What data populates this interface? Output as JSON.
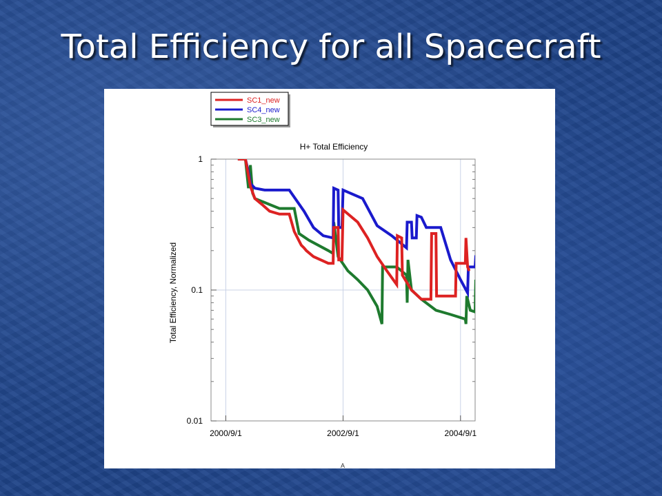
{
  "slide": {
    "title": "Total Efficiency for all Spacecraft"
  },
  "chart_data": {
    "type": "line",
    "title": "H+ Total Efficiency",
    "xlabel": "",
    "ylabel": "Total Efficiency, Normalized",
    "footer_mark": "A",
    "x_scale": "time",
    "xlim": [
      "2000-06-01",
      "2004-12-01"
    ],
    "y_scale": "log",
    "ylim": [
      0.01,
      1
    ],
    "y_ticks": [
      {
        "value": 1,
        "label": "1"
      },
      {
        "value": 0.1,
        "label": "0.1"
      },
      {
        "value": 0.01,
        "label": "0.01"
      }
    ],
    "x_ticks": [
      {
        "value": "2000-09-01",
        "label": "2000/9/1"
      },
      {
        "value": "2002-09-01",
        "label": "2002/9/1"
      },
      {
        "value": "2004-09-01",
        "label": "2004/9/1"
      }
    ],
    "grid": true,
    "legend_position": "top-left",
    "series": [
      {
        "name": "SC1_new",
        "color": "#dd2222",
        "points": [
          [
            "2000-11-15",
            1.0
          ],
          [
            "2001-01-01",
            1.0
          ],
          [
            "2001-01-20",
            0.75
          ],
          [
            "2001-02-01",
            0.62
          ],
          [
            "2001-03-01",
            0.5
          ],
          [
            "2001-04-15",
            0.45
          ],
          [
            "2001-06-01",
            0.4
          ],
          [
            "2001-08-01",
            0.38
          ],
          [
            "2001-10-01",
            0.38
          ],
          [
            "2001-11-01",
            0.28
          ],
          [
            "2001-12-15",
            0.22
          ],
          [
            "2002-01-01",
            0.21
          ],
          [
            "2002-01-15",
            0.2
          ],
          [
            "2002-03-01",
            0.18
          ],
          [
            "2002-06-01",
            0.16
          ],
          [
            "2002-07-01",
            0.16
          ],
          [
            "2002-07-05",
            0.3
          ],
          [
            "2002-08-01",
            0.3
          ],
          [
            "2002-08-05",
            0.17
          ],
          [
            "2002-08-25",
            0.17
          ],
          [
            "2002-09-01",
            0.41
          ],
          [
            "2002-12-01",
            0.33
          ],
          [
            "2003-02-01",
            0.25
          ],
          [
            "2003-04-01",
            0.18
          ],
          [
            "2003-06-01",
            0.14
          ],
          [
            "2003-08-01",
            0.11
          ],
          [
            "2003-08-05",
            0.26
          ],
          [
            "2003-09-01",
            0.25
          ],
          [
            "2003-09-05",
            0.13
          ],
          [
            "2003-11-01",
            0.1
          ],
          [
            "2004-01-01",
            0.085
          ],
          [
            "2004-03-01",
            0.085
          ],
          [
            "2004-03-05",
            0.27
          ],
          [
            "2004-04-01",
            0.27
          ],
          [
            "2004-04-05",
            0.09
          ],
          [
            "2004-08-01",
            0.09
          ],
          [
            "2004-08-05",
            0.16
          ],
          [
            "2004-10-01",
            0.16
          ],
          [
            "2004-10-05",
            0.25
          ],
          [
            "2004-10-15",
            0.15
          ],
          [
            "2004-10-25",
            0.14
          ]
        ]
      },
      {
        "name": "SC4_new",
        "color": "#1a1acc",
        "points": [
          [
            "2000-11-15",
            1.0
          ],
          [
            "2001-01-01",
            1.0
          ],
          [
            "2001-01-20",
            0.8
          ],
          [
            "2001-02-01",
            0.65
          ],
          [
            "2001-03-01",
            0.6
          ],
          [
            "2001-05-01",
            0.58
          ],
          [
            "2001-07-01",
            0.58
          ],
          [
            "2001-10-01",
            0.58
          ],
          [
            "2002-01-01",
            0.4
          ],
          [
            "2002-03-01",
            0.3
          ],
          [
            "2002-05-01",
            0.26
          ],
          [
            "2002-07-01",
            0.25
          ],
          [
            "2002-07-05",
            0.6
          ],
          [
            "2002-08-01",
            0.58
          ],
          [
            "2002-08-05",
            0.3
          ],
          [
            "2002-08-25",
            0.3
          ],
          [
            "2002-09-01",
            0.58
          ],
          [
            "2003-01-01",
            0.5
          ],
          [
            "2003-04-01",
            0.31
          ],
          [
            "2003-07-01",
            0.26
          ],
          [
            "2003-10-01",
            0.21
          ],
          [
            "2003-10-05",
            0.33
          ],
          [
            "2003-11-01",
            0.33
          ],
          [
            "2003-11-05",
            0.25
          ],
          [
            "2003-12-01",
            0.25
          ],
          [
            "2003-12-05",
            0.37
          ],
          [
            "2004-01-01",
            0.36
          ],
          [
            "2004-02-01",
            0.3
          ],
          [
            "2004-05-01",
            0.3
          ],
          [
            "2004-07-01",
            0.17
          ],
          [
            "2004-09-01",
            0.12
          ],
          [
            "2004-10-15",
            0.095
          ],
          [
            "2004-10-20",
            0.15
          ],
          [
            "2004-12-01",
            0.15
          ],
          [
            "2004-12-05",
            0.18
          ],
          [
            "2005-02-01",
            0.18
          ]
        ]
      },
      {
        "name": "SC3_new",
        "color": "#1e7a2e",
        "points": [
          [
            "2000-11-15",
            1.0
          ],
          [
            "2001-01-01",
            1.0
          ],
          [
            "2001-01-20",
            0.6
          ],
          [
            "2001-02-01",
            0.9
          ],
          [
            "2001-02-15",
            0.55
          ],
          [
            "2001-03-01",
            0.5
          ],
          [
            "2001-06-01",
            0.45
          ],
          [
            "2001-08-01",
            0.42
          ],
          [
            "2001-11-01",
            0.42
          ],
          [
            "2001-12-01",
            0.27
          ],
          [
            "2002-02-01",
            0.24
          ],
          [
            "2002-06-01",
            0.2
          ],
          [
            "2002-07-01",
            0.19
          ],
          [
            "2002-07-05",
            0.33
          ],
          [
            "2002-08-01",
            0.18
          ],
          [
            "2002-10-01",
            0.14
          ],
          [
            "2002-12-01",
            0.12
          ],
          [
            "2003-02-01",
            0.1
          ],
          [
            "2003-04-01",
            0.075
          ],
          [
            "2003-05-01",
            0.055
          ],
          [
            "2003-05-05",
            0.15
          ],
          [
            "2003-08-01",
            0.15
          ],
          [
            "2003-10-01",
            0.13
          ],
          [
            "2003-10-05",
            0.08
          ],
          [
            "2003-10-10",
            0.17
          ],
          [
            "2003-11-01",
            0.1
          ],
          [
            "2004-01-01",
            0.085
          ],
          [
            "2004-04-01",
            0.07
          ],
          [
            "2004-07-01",
            0.065
          ],
          [
            "2004-10-01",
            0.06
          ],
          [
            "2004-10-05",
            0.055
          ],
          [
            "2004-10-10",
            0.09
          ],
          [
            "2004-11-01",
            0.07
          ],
          [
            "2004-12-01",
            0.068
          ],
          [
            "2004-12-05",
            0.12
          ],
          [
            "2004-12-20",
            0.06
          ],
          [
            "2005-01-01",
            0.05
          ],
          [
            "2005-02-01",
            0.05
          ]
        ]
      }
    ]
  }
}
